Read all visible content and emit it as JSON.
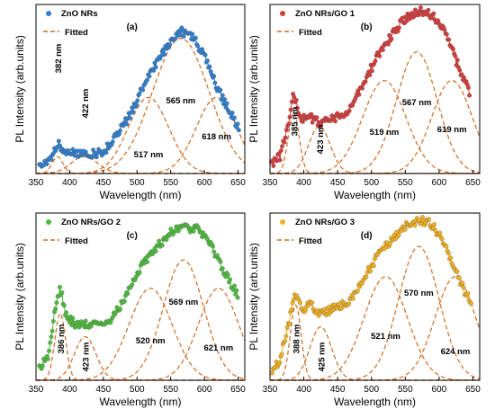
{
  "figure": {
    "ylabel": "PL Intensity (arb.units)",
    "xlabel": "Wavelength (nm)"
  },
  "chart_data": [
    {
      "type": "scatter",
      "panel_label": "(a)",
      "xlabel": "Wavelength (nm)",
      "ylabel": "PL Intensity (arb.units)",
      "xlim": [
        350,
        660
      ],
      "ylim": [
        0,
        1
      ],
      "x_ticks": [
        "350",
        "400",
        "450",
        "500",
        "550",
        "600",
        "650"
      ],
      "data_color": "#2f7fd0",
      "fit_color": "#d2691e",
      "legend": [
        "ZnO NRs",
        "Fitted"
      ],
      "peak_labels": [
        "382 nm",
        "422 nm",
        "517 nm",
        "565 nm",
        "618 nm"
      ],
      "series": [
        {
          "name": "ZnO NRs",
          "x": [
            355,
            370,
            382,
            392,
            410,
            430,
            450,
            470,
            490,
            510,
            530,
            550,
            565,
            580,
            600,
            620,
            640,
            652
          ],
          "y": [
            0.06,
            0.08,
            0.18,
            0.13,
            0.12,
            0.11,
            0.13,
            0.22,
            0.35,
            0.52,
            0.66,
            0.78,
            0.84,
            0.82,
            0.7,
            0.5,
            0.35,
            0.25
          ]
        },
        {
          "name": "Fitted",
          "peaks": [
            [
              382,
              0.1,
              8
            ],
            [
              422,
              0.1,
              20
            ],
            [
              517,
              0.45,
              30
            ],
            [
              565,
              0.8,
              42
            ],
            [
              618,
              0.45,
              30
            ]
          ]
        }
      ]
    },
    {
      "type": "scatter",
      "panel_label": "(b)",
      "xlabel": "Wavelength (nm)",
      "ylabel": "PL Intensity (arb.units)",
      "xlim": [
        350,
        660
      ],
      "ylim": [
        0,
        1
      ],
      "x_ticks": [
        "350",
        "400",
        "450",
        "500",
        "550",
        "600",
        "650"
      ],
      "data_color": "#d63b3b",
      "fit_color": "#d2691e",
      "legend": [
        "ZnO NRs/GO 1",
        "Fitted"
      ],
      "peak_labels": [
        "385 nm",
        "423 nm",
        "519 nm",
        "567 nm",
        "619 nm"
      ],
      "series": [
        {
          "name": "ZnO NRs/GO 1",
          "x": [
            352,
            365,
            375,
            385,
            395,
            410,
            425,
            445,
            465,
            490,
            510,
            530,
            550,
            570,
            590,
            610,
            630,
            645
          ],
          "y": [
            0.06,
            0.1,
            0.25,
            0.48,
            0.32,
            0.33,
            0.3,
            0.33,
            0.36,
            0.55,
            0.7,
            0.82,
            0.92,
            0.96,
            0.94,
            0.82,
            0.62,
            0.48
          ]
        },
        {
          "name": "Fitted",
          "peaks": [
            [
              385,
              0.36,
              8
            ],
            [
              423,
              0.28,
              16
            ],
            [
              519,
              0.55,
              32
            ],
            [
              567,
              0.72,
              30
            ],
            [
              619,
              0.55,
              30
            ]
          ]
        }
      ]
    },
    {
      "type": "scatter",
      "panel_label": "(c)",
      "xlabel": "Wavelength (nm)",
      "ylabel": "PL Intensity (arb.units)",
      "xlim": [
        350,
        660
      ],
      "ylim": [
        0,
        1
      ],
      "x_ticks": [
        "350",
        "400",
        "450",
        "500",
        "550",
        "600",
        "650"
      ],
      "data_color": "#4cbc3c",
      "fit_color": "#d2691e",
      "legend": [
        "ZnO NRs/GO 2",
        "Fitted"
      ],
      "peak_labels": [
        "386 nm",
        "423 nm",
        "520 nm",
        "569 nm",
        "621 nm"
      ],
      "series": [
        {
          "name": "ZnO NRs/GO 2",
          "x": [
            355,
            368,
            378,
            386,
            395,
            410,
            425,
            445,
            465,
            490,
            510,
            530,
            550,
            570,
            590,
            610,
            630,
            650
          ],
          "y": [
            0.07,
            0.15,
            0.4,
            0.55,
            0.38,
            0.33,
            0.34,
            0.32,
            0.38,
            0.55,
            0.7,
            0.8,
            0.88,
            0.92,
            0.9,
            0.8,
            0.65,
            0.5
          ]
        },
        {
          "name": "Fitted",
          "peaks": [
            [
              386,
              0.4,
              8
            ],
            [
              423,
              0.26,
              16
            ],
            [
              520,
              0.55,
              32
            ],
            [
              569,
              0.72,
              30
            ],
            [
              621,
              0.55,
              30
            ]
          ]
        }
      ]
    },
    {
      "type": "scatter",
      "panel_label": "(d)",
      "xlabel": "Wavelength (nm)",
      "ylabel": "PL Intensity (arb.units)",
      "xlim": [
        350,
        660
      ],
      "ylim": [
        0,
        1
      ],
      "x_ticks": [
        "350",
        "400",
        "450",
        "500",
        "550",
        "600",
        "650"
      ],
      "data_color": "#f0b020",
      "fit_color": "#d2691e",
      "legend": [
        "ZnO NRs/GO 3",
        "Fitted"
      ],
      "peak_labels": [
        "388 nm",
        "425 nm",
        "521 nm",
        "570 nm",
        "624 nm"
      ],
      "series": [
        {
          "name": "ZnO NRs/GO 3",
          "x": [
            353,
            365,
            378,
            388,
            398,
            410,
            425,
            445,
            465,
            490,
            510,
            530,
            550,
            570,
            590,
            610,
            630,
            648
          ],
          "y": [
            0.06,
            0.12,
            0.35,
            0.52,
            0.42,
            0.45,
            0.4,
            0.43,
            0.46,
            0.62,
            0.75,
            0.84,
            0.92,
            0.96,
            0.93,
            0.8,
            0.6,
            0.45
          ]
        },
        {
          "name": "Fitted",
          "peaks": [
            [
              388,
              0.45,
              8
            ],
            [
              425,
              0.32,
              16
            ],
            [
              521,
              0.62,
              32
            ],
            [
              570,
              0.8,
              30
            ],
            [
              624,
              0.62,
              30
            ]
          ]
        }
      ]
    }
  ]
}
